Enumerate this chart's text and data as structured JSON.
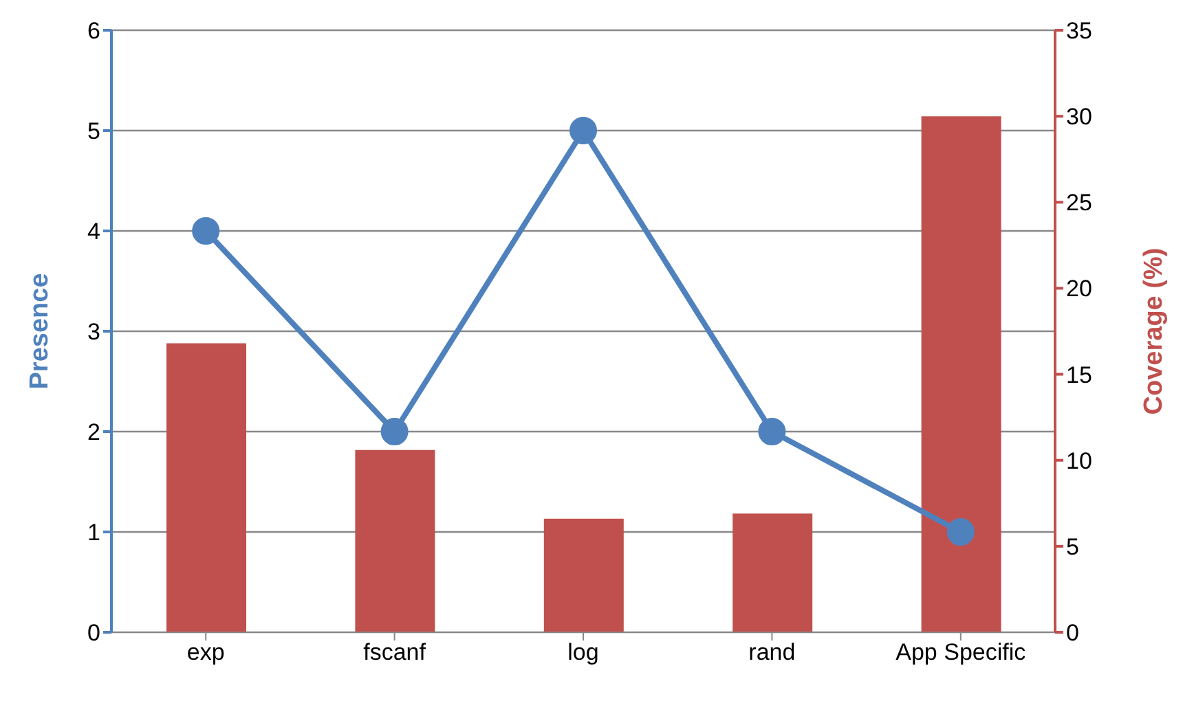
{
  "chart_data": {
    "type": "bar",
    "categories": [
      "exp",
      "fscanf",
      "log",
      "rand",
      "App Specific"
    ],
    "ylabel": "Presence",
    "y2label": "Coverage (%)",
    "series": [
      {
        "axis": "y2",
        "color": "#c0504d",
        "values": [
          16.8,
          10.6,
          6.6,
          6.9,
          30.0
        ]
      },
      {
        "type": "line",
        "axis": "y",
        "color": "#4f81bd",
        "values": [
          4,
          2,
          5,
          2,
          1
        ]
      }
    ],
    "ylim": [
      0,
      6
    ],
    "yticks": [
      0,
      1,
      2,
      3,
      4,
      5,
      6
    ],
    "y2lim": [
      0,
      35
    ],
    "y2ticks": [
      0,
      5,
      10,
      15,
      20,
      25,
      30,
      35
    ],
    "grid": "y",
    "legend": false,
    "marker": "circle",
    "line_style": "solid"
  }
}
